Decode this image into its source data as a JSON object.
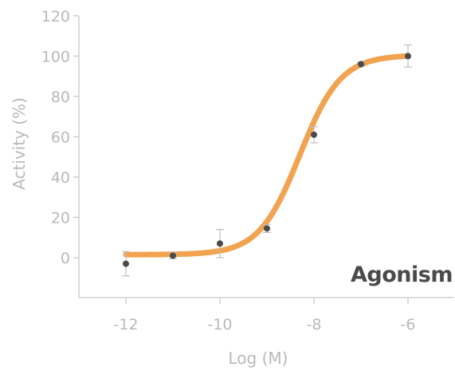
{
  "chart_data": {
    "type": "scatter",
    "xlabel": "Log (M)",
    "ylabel": "Activity (%)",
    "annotation": "Agonism",
    "xlim": [
      -13.2,
      -5.1
    ],
    "ylim": [
      -20,
      120
    ],
    "xticks": [
      -12,
      -10,
      -8,
      -6
    ],
    "xtick_labels": [
      "-12",
      "-10",
      "-8",
      "-6"
    ],
    "yticks": [
      0,
      20,
      40,
      60,
      80,
      100,
      120
    ],
    "ytick_labels": [
      "0",
      "20",
      "40",
      "60",
      "80",
      "100",
      "120"
    ],
    "grid": false,
    "points": [
      {
        "x": -12,
        "y": -3,
        "err": 6
      },
      {
        "x": -11,
        "y": 1,
        "err": 1.5
      },
      {
        "x": -10,
        "y": 7,
        "err": 7
      },
      {
        "x": -9,
        "y": 14.5,
        "err": 2
      },
      {
        "x": -8,
        "y": 61,
        "err": 4
      },
      {
        "x": -7,
        "y": 96,
        "err": 1
      },
      {
        "x": -6,
        "y": 100,
        "err": 5.5
      }
    ],
    "curve": {
      "bottom": 1.5,
      "top": 100.5,
      "logEC50": -8.3,
      "hill": 1.0,
      "x_start": -12,
      "x_end": -6
    },
    "colors": {
      "axis": "#c8c8c8",
      "text": "#b9b9b9",
      "curve": "#f2a34f",
      "marker": "#4a4a4a",
      "error": "#bdbdbd",
      "annotation": "#4a4a4a"
    }
  }
}
